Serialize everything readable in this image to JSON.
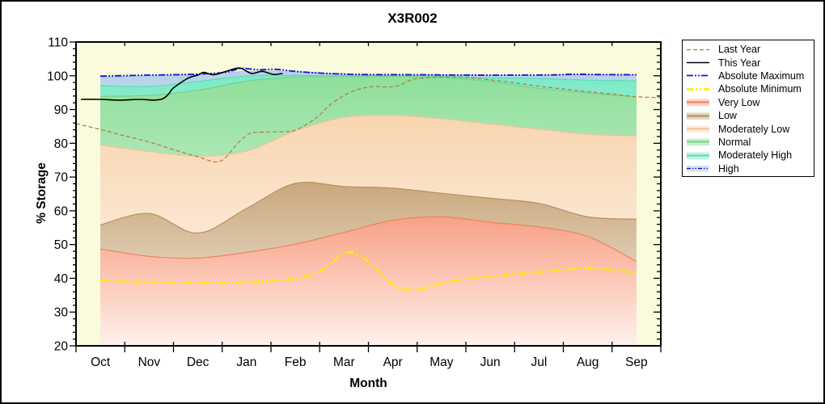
{
  "window": {
    "background": "#ffffff",
    "border_color": "#000000"
  },
  "chart_data": {
    "type": "area",
    "title": "X3R002",
    "xlabel": "Month",
    "ylabel": "% Storage",
    "x_categories": [
      "Oct",
      "Nov",
      "Dec",
      "Jan",
      "Feb",
      "Mar",
      "Apr",
      "May",
      "Jun",
      "Jul",
      "Aug",
      "Sep"
    ],
    "ylim": [
      20,
      110
    ],
    "y_major_step": 10,
    "y_minor_step": 2,
    "grid": "off",
    "plot_bg": "#fafbdc",
    "axis_color": "#000000",
    "legend_position": "right",
    "bands": [
      {
        "name": "High",
        "color": "#b7d2e8",
        "edge": "#a9c8e2",
        "values": [
          99.6,
          100.0,
          100.3,
          101.3,
          101.2,
          100.5,
          100.2,
          100.2,
          100.1,
          100.1,
          100.3,
          100.2
        ]
      },
      {
        "name": "Moderately High",
        "color": "#7deac7",
        "edge": "#5adcb6",
        "values": [
          97.1,
          96.8,
          98.3,
          99.9,
          100.1,
          100.0,
          100.0,
          99.9,
          99.4,
          99.2,
          98.7,
          98.5
        ]
      },
      {
        "name": "Normal",
        "color": "#8fdf9b",
        "edge": "#77d287",
        "values": [
          93.9,
          94.2,
          95.7,
          98.4,
          99.6,
          99.8,
          99.8,
          99.5,
          98.3,
          96.3,
          94.9,
          93.7
        ]
      },
      {
        "name": "Moderately Low",
        "color": "#f8d5b0",
        "edge": "#edc296",
        "values": [
          79.5,
          77.6,
          76.2,
          77.7,
          83.7,
          87.7,
          88.3,
          87.3,
          85.7,
          84.2,
          82.7,
          82.2
        ]
      },
      {
        "name": "Low",
        "color": "#c9a87c",
        "edge": "#b6905c",
        "values": [
          55.8,
          59.2,
          53.4,
          60.7,
          68.1,
          67.2,
          66.7,
          65.2,
          63.7,
          62.2,
          58.2,
          57.5
        ]
      },
      {
        "name": "Very Low",
        "color": "#f8a184",
        "edge": "#ee8161",
        "values": [
          48.7,
          46.5,
          46.0,
          47.7,
          50.1,
          53.6,
          57.2,
          58.2,
          56.6,
          55.2,
          52.4,
          45.0
        ]
      }
    ],
    "lines": [
      {
        "name": "Last Year",
        "color": "#b8763c",
        "width": 1.2,
        "dash": "5,3",
        "z": 2,
        "points": [
          [
            0,
            85.8
          ],
          [
            0.5,
            84.1
          ],
          [
            1.0,
            82.2
          ],
          [
            1.5,
            80.4
          ],
          [
            2.0,
            78.1
          ],
          [
            2.5,
            76.0
          ],
          [
            2.85,
            74.5
          ],
          [
            3.05,
            75.5
          ],
          [
            3.3,
            79.7
          ],
          [
            3.55,
            82.8
          ],
          [
            3.8,
            83.3
          ],
          [
            4.2,
            83.4
          ],
          [
            4.5,
            83.9
          ],
          [
            4.9,
            87.2
          ],
          [
            5.2,
            91.2
          ],
          [
            5.5,
            94.2
          ],
          [
            5.8,
            96.0
          ],
          [
            6.1,
            96.8
          ],
          [
            6.35,
            96.7
          ],
          [
            6.6,
            97.0
          ],
          [
            6.9,
            98.9
          ],
          [
            7.2,
            99.4
          ],
          [
            7.5,
            99.6
          ],
          [
            8.0,
            99.5
          ],
          [
            8.5,
            98.8
          ],
          [
            9.0,
            97.9
          ],
          [
            9.5,
            96.9
          ],
          [
            10.0,
            96.1
          ],
          [
            10.5,
            95.3
          ],
          [
            11.0,
            94.6
          ],
          [
            11.5,
            93.8
          ],
          [
            12.0,
            93.5
          ]
        ]
      },
      {
        "name": "This Year",
        "color": "#000000",
        "width": 1.6,
        "dash": "",
        "z": 4,
        "points": [
          [
            0.1,
            93.0
          ],
          [
            0.5,
            93.0
          ],
          [
            0.9,
            92.8
          ],
          [
            1.3,
            93.0
          ],
          [
            1.6,
            92.8
          ],
          [
            1.78,
            93.2
          ],
          [
            1.9,
            94.6
          ],
          [
            2.0,
            96.4
          ],
          [
            2.3,
            99.3
          ],
          [
            2.5,
            100.2
          ],
          [
            2.62,
            101.0
          ],
          [
            2.83,
            100.3
          ],
          [
            3.1,
            101.4
          ],
          [
            3.36,
            102.3
          ],
          [
            3.6,
            100.7
          ],
          [
            3.82,
            101.3
          ],
          [
            4.05,
            100.4
          ],
          [
            4.24,
            100.7
          ]
        ]
      },
      {
        "name": "Absolute Maximum",
        "color": "#1212d6",
        "width": 1.8,
        "dash": "8,2,2,2,2,2",
        "z": 3,
        "points": [
          [
            0.5,
            99.9
          ],
          [
            1.0,
            100.05
          ],
          [
            1.5,
            100.2
          ],
          [
            2.0,
            100.3
          ],
          [
            2.5,
            100.5
          ],
          [
            3.0,
            100.9
          ],
          [
            3.2,
            101.5
          ],
          [
            3.4,
            102.2
          ],
          [
            3.75,
            101.8
          ],
          [
            4.1,
            101.9
          ],
          [
            4.5,
            101.3
          ],
          [
            5.0,
            100.8
          ],
          [
            5.5,
            100.5
          ],
          [
            6.0,
            100.35
          ],
          [
            7.0,
            100.3
          ],
          [
            8.0,
            100.2
          ],
          [
            9.0,
            100.2
          ],
          [
            9.8,
            100.25
          ],
          [
            10.2,
            100.45
          ],
          [
            10.7,
            100.35
          ],
          [
            11.5,
            100.3
          ]
        ]
      },
      {
        "name": "Absolute Minimum",
        "color": "#ffeb00",
        "width": 2.8,
        "dash": "8,3,2,3,2,3",
        "z": 1,
        "points": [
          [
            0.5,
            39.4
          ],
          [
            1.0,
            39.1
          ],
          [
            1.5,
            38.9
          ],
          [
            2.0,
            38.8
          ],
          [
            2.5,
            38.7
          ],
          [
            3.0,
            38.7
          ],
          [
            3.5,
            38.9
          ],
          [
            4.0,
            39.2
          ],
          [
            4.5,
            39.9
          ],
          [
            5.0,
            42.0
          ],
          [
            5.3,
            45.3
          ],
          [
            5.55,
            47.7
          ],
          [
            5.8,
            46.9
          ],
          [
            6.1,
            43.8
          ],
          [
            6.5,
            38.0
          ],
          [
            6.8,
            36.6
          ],
          [
            7.1,
            37.0
          ],
          [
            7.5,
            38.5
          ],
          [
            8.0,
            39.8
          ],
          [
            8.5,
            40.5
          ],
          [
            9.0,
            41.2
          ],
          [
            9.5,
            41.9
          ],
          [
            10.0,
            42.5
          ],
          [
            10.4,
            43.0
          ],
          [
            10.8,
            42.8
          ],
          [
            11.5,
            41.7
          ]
        ]
      }
    ],
    "legend": [
      "Last Year",
      "This Year",
      "Absolute Maximum",
      "Absolute Minimum",
      "Very Low",
      "Low",
      "Moderately Low",
      "Normal",
      "Moderately High",
      "High"
    ]
  }
}
